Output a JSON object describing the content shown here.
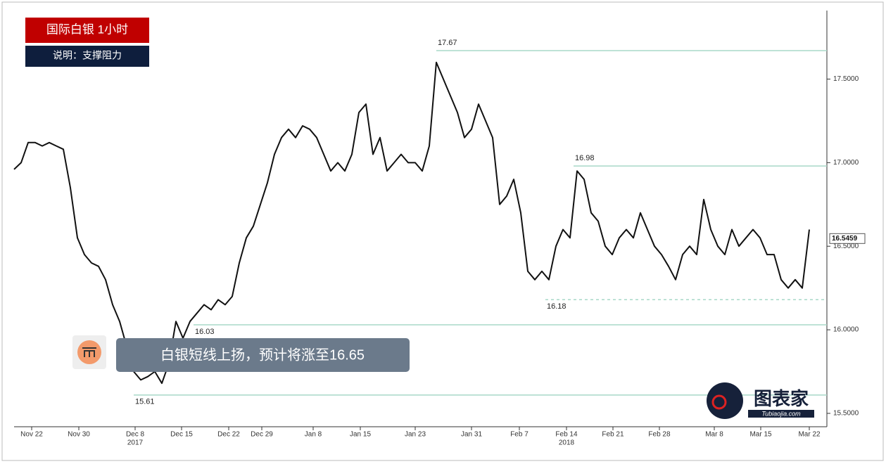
{
  "chart_data": {
    "type": "line",
    "title": "国际白银  1小时",
    "subtitle": "说明：支撑阻力",
    "annotation": "白银短线上扬，预计将涨至16.65",
    "watermark": {
      "name": "图表家",
      "url": "Tubiaojia.com"
    },
    "color": "#111111",
    "level_color": "#a8d8c8",
    "xlim": [
      0,
      113
    ],
    "xticks": [
      {
        "value": 2.5,
        "label": "Nov 22"
      },
      {
        "value": 9.2,
        "label": "Nov 30"
      },
      {
        "value": 17.2,
        "label": "Dec 8"
      },
      {
        "value": 23.8,
        "label": "Dec 15"
      },
      {
        "value": 30.5,
        "label": "Dec 22"
      },
      {
        "value": 35.2,
        "label": "Dec 29"
      },
      {
        "value": 42.5,
        "label": "Jan 8"
      },
      {
        "value": 49.2,
        "label": "Jan 15"
      },
      {
        "value": 57,
        "label": "Jan 23"
      },
      {
        "value": 65,
        "label": "Jan 31"
      },
      {
        "value": 71.8,
        "label": "Feb 7"
      },
      {
        "value": 78.5,
        "label": "Feb 14"
      },
      {
        "value": 85.1,
        "label": "Feb 21"
      },
      {
        "value": 91.7,
        "label": "Feb 28"
      },
      {
        "value": 99.5,
        "label": "Mar 8"
      },
      {
        "value": 106.1,
        "label": "Mar 15"
      },
      {
        "value": 113,
        "label": "Mar 22"
      }
    ],
    "years": [
      {
        "value": 17.2,
        "label": "2017"
      },
      {
        "value": 78.5,
        "label": "2018"
      }
    ],
    "ylim": [
      15.42,
      17.91
    ],
    "yticks": [
      {
        "value": 15.5,
        "label": "15.5000"
      },
      {
        "value": 16,
        "label": "16.0000"
      },
      {
        "value": 16.5,
        "label": "16.5000"
      },
      {
        "value": 17,
        "label": "17.0000"
      },
      {
        "value": 17.5,
        "label": "17.5000"
      }
    ],
    "last_value": 16.5459,
    "levels": [
      {
        "value": 17.67,
        "dashed": false
      },
      {
        "value": 16.98,
        "dashed": false
      },
      {
        "value": 16.03,
        "dashed": false
      },
      {
        "value": 15.61,
        "dashed": false
      },
      {
        "value": 16.18,
        "dashed": true
      }
    ],
    "values": [
      16.96,
      17.0,
      17.12,
      17.12,
      17.1,
      17.12,
      17.1,
      17.08,
      16.85,
      16.55,
      16.45,
      16.4,
      16.38,
      16.3,
      16.15,
      16.05,
      15.9,
      15.75,
      15.7,
      15.72,
      15.75,
      15.68,
      15.8,
      16.05,
      15.95,
      16.05,
      16.1,
      16.15,
      16.12,
      16.18,
      16.15,
      16.2,
      16.4,
      16.55,
      16.62,
      16.75,
      16.88,
      17.05,
      17.15,
      17.2,
      17.15,
      17.22,
      17.2,
      17.15,
      17.05,
      16.95,
      17.0,
      16.95,
      17.05,
      17.3,
      17.35,
      17.05,
      17.15,
      16.95,
      17.0,
      17.05,
      17.0,
      17.0,
      16.95,
      17.1,
      17.6,
      17.5,
      17.4,
      17.3,
      17.15,
      17.2,
      17.35,
      17.25,
      17.15,
      16.75,
      16.8,
      16.9,
      16.7,
      16.35,
      16.3,
      16.35,
      16.3,
      16.5,
      16.6,
      16.55,
      16.95,
      16.9,
      16.7,
      16.65,
      16.5,
      16.45,
      16.55,
      16.6,
      16.55,
      16.7,
      16.6,
      16.5,
      16.45,
      16.38,
      16.3,
      16.45,
      16.5,
      16.45,
      16.78,
      16.6,
      16.5,
      16.45,
      16.6,
      16.5,
      16.55,
      16.6,
      16.55,
      16.45,
      16.45,
      16.3,
      16.25,
      16.3,
      16.25,
      16.6
    ]
  }
}
